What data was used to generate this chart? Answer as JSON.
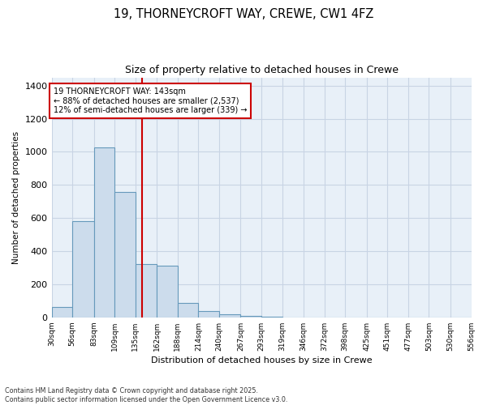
{
  "title_line1": "19, THORNEYCROFT WAY, CREWE, CW1 4FZ",
  "title_line2": "Size of property relative to detached houses in Crewe",
  "xlabel": "Distribution of detached houses by size in Crewe",
  "ylabel": "Number of detached properties",
  "footnote": "Contains HM Land Registry data © Crown copyright and database right 2025.\nContains public sector information licensed under the Open Government Licence v3.0.",
  "bin_edges": [
    30,
    56,
    83,
    109,
    135,
    162,
    188,
    214,
    240,
    267,
    293,
    319,
    346,
    372,
    398,
    425,
    451,
    477,
    503,
    530,
    556
  ],
  "bar_heights": [
    65,
    580,
    1025,
    760,
    320,
    310,
    85,
    40,
    20,
    10,
    5,
    0,
    0,
    0,
    0,
    0,
    0,
    0,
    0,
    0
  ],
  "bar_color": "#ccdcec",
  "bar_edge_color": "#6699bb",
  "grid_color": "#c8d4e4",
  "background_color": "#e8f0f8",
  "marker_x": 143,
  "marker_color": "#cc0000",
  "annotation_text": "19 THORNEYCROFT WAY: 143sqm\n← 88% of detached houses are smaller (2,537)\n12% of semi-detached houses are larger (339) →",
  "annotation_box_color": "#cc0000",
  "ylim": [
    0,
    1450
  ],
  "xlim": [
    30,
    556
  ],
  "tick_positions": [
    30,
    56,
    83,
    109,
    135,
    162,
    188,
    214,
    240,
    267,
    293,
    319,
    346,
    372,
    398,
    425,
    451,
    477,
    503,
    530,
    556
  ],
  "tick_labels": [
    "30sqm",
    "56sqm",
    "83sqm",
    "109sqm",
    "135sqm",
    "162sqm",
    "188sqm",
    "214sqm",
    "240sqm",
    "267sqm",
    "293sqm",
    "319sqm",
    "346sqm",
    "372sqm",
    "398sqm",
    "425sqm",
    "451sqm",
    "477sqm",
    "503sqm",
    "530sqm",
    "556sqm"
  ],
  "yticks": [
    0,
    200,
    400,
    600,
    800,
    1000,
    1200,
    1400
  ]
}
